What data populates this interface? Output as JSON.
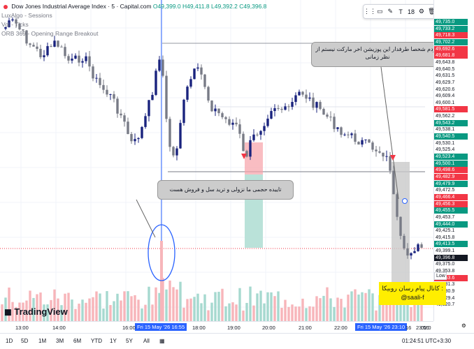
{
  "legend": {
    "title": "Dow Jones Industrial Average Index · 5 · Capital.com",
    "ohlc": [
      "O49,399.0",
      "H49,411.8",
      "L49,392.2",
      "C49,396.8"
    ],
    "indicators": [
      "LuxAlgo - Sessions",
      "Vol - Ticks",
      "ORB 369 - Opening Range Breakout"
    ]
  },
  "toolbar": {
    "size": "18"
  },
  "price_axis": [
    {
      "v": "49,735.0",
      "c": "g"
    },
    {
      "v": "49,733.2",
      "c": "g"
    },
    {
      "v": "49,718.3",
      "c": "r"
    },
    {
      "v": "49,702.2",
      "c": "g"
    },
    {
      "v": "49,692.6",
      "c": "r"
    },
    {
      "v": "49,681.8",
      "c": "r"
    },
    {
      "v": "49,643.8",
      "c": "plain"
    },
    {
      "v": "49,640.5",
      "c": "plain"
    },
    {
      "v": "49,631.5",
      "c": "plain"
    },
    {
      "v": "49,629.7",
      "c": "plain"
    },
    {
      "v": "49,620.6",
      "c": "plain"
    },
    {
      "v": "49,609.4",
      "c": "plain"
    },
    {
      "v": "49,600.1",
      "c": "plain"
    },
    {
      "v": "49,581.5",
      "c": "r"
    },
    {
      "v": "49,562.2",
      "c": "plain"
    },
    {
      "v": "49,543.2",
      "c": "g"
    },
    {
      "v": "49,538.1",
      "c": "plain"
    },
    {
      "v": "49,540.5",
      "c": "g"
    },
    {
      "v": "49,530.1",
      "c": "plain"
    },
    {
      "v": "49,525.4",
      "c": "plain"
    },
    {
      "v": "49,523.4",
      "c": "g"
    },
    {
      "v": "49,500.1",
      "c": "g"
    },
    {
      "v": "49,498.6",
      "c": "r"
    },
    {
      "v": "49,482.9",
      "c": "r"
    },
    {
      "v": "49,479.9",
      "c": "g"
    },
    {
      "v": "49,472.5",
      "c": "plain"
    },
    {
      "v": "49,466.4",
      "c": "r"
    },
    {
      "v": "49,456.3",
      "c": "r"
    },
    {
      "v": "49,455.5",
      "c": "g"
    },
    {
      "v": "49,453.7",
      "c": "plain"
    },
    {
      "v": "49,444.0",
      "c": "g"
    },
    {
      "v": "49,425.1",
      "c": "plain"
    },
    {
      "v": "49,415.8",
      "c": "plain"
    },
    {
      "v": "49,413.5",
      "c": "g"
    },
    {
      "v": "49,399.1",
      "c": "plain"
    },
    {
      "v": "49,396.8",
      "c": "k"
    },
    {
      "v": "49,375.0",
      "c": "plain"
    },
    {
      "v": "49,353.8",
      "c": "plain"
    },
    {
      "v": "49,353.6",
      "c": "r"
    },
    {
      "v": "49,331.3",
      "c": "plain"
    },
    {
      "v": "49,330.9",
      "c": "plain"
    },
    {
      "v": "49,329.4",
      "c": "plain"
    },
    {
      "v": "49,320.7",
      "c": "plain"
    }
  ],
  "low_tag": "Low",
  "time_axis": {
    "labels": [
      "13:00",
      "14:00",
      "16:00",
      "18:00",
      "19:00",
      "20:00",
      "21:00",
      "22:00",
      "02:0"
    ],
    "highlight_left": "Fri 15 May '26   16:55",
    "highlight_right": "Fri 15 May '26   23:10",
    "right_extra": [
      "16",
      "23:50"
    ]
  },
  "notes": {
    "left": "تاییده حجمی ما نزولی و ترید سل و فروش هست",
    "right": "خودم شخصا طرفدار این پوزیشن اخر مارکت نیستم از نظر زمانی"
  },
  "promo": {
    "line1": "کانال پیام رسان روبیکا :",
    "line2": "@saali-f"
  },
  "brand": "TradingView",
  "bottom": {
    "clock": "01:24:51 UTC+3:30"
  },
  "colors": {
    "up": "#089981",
    "down": "#f23645",
    "dark_candle": "#1a237e",
    "accent": "#2962ff",
    "note_bg": "#cccccc",
    "promo_bg": "#ffee00"
  }
}
